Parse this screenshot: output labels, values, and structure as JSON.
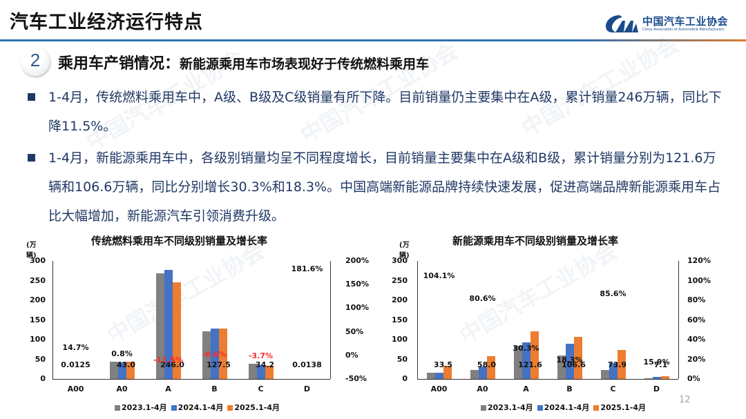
{
  "header": {
    "title": "汽车工业经济运行特点",
    "logo_cn": "中国汽车工业协会",
    "logo_en": "China Association of Automobile Manufacturers"
  },
  "section": {
    "number": "2",
    "title": "乘用车产销情况：",
    "subtitle": "新能源乘用车市场表现好于传统燃料乘用车"
  },
  "bullets": [
    "1-4月，传统燃料乘用车中，A级、B级及C级销量有所下降。目前销量仍主要集中在A级，累计销量246万辆，同比下降11.5%。",
    "1-4月，新能源乘用车中，各级别销量均呈不同程度增长，目前销量主要集中在A级和B级，累计销量分别为121.6万辆和106.6万辆，同比分别增长30.3%和18.3%。中国高端新能源品牌持续快速发展，促进高端品牌新能源乘用车占比大幅增加，新能源汽车引领消费升级。"
  ],
  "watermark": "中国汽车工业协会",
  "page_number": "12",
  "colors": {
    "s2023": "#808080",
    "s2024": "#4472c4",
    "s2025": "#ed7d31",
    "negative": "#ff2a2a",
    "accent_blue": "#2e6fb3",
    "accent_orange": "#e07b2a"
  },
  "chart_data": [
    {
      "type": "bar",
      "title": "传统燃料乘用车不同级别销量及增长率",
      "ylabel": "(万辆)",
      "ylim": [
        0,
        300
      ],
      "yticks": [
        "0",
        "50",
        "100",
        "150",
        "200",
        "250",
        "300"
      ],
      "y2lim": [
        -50,
        200
      ],
      "y2ticks": [
        "-50%",
        "0%",
        "50%",
        "100%",
        "150%",
        "200%"
      ],
      "categories": [
        "A00",
        "A0",
        "A",
        "B",
        "C",
        "D"
      ],
      "series": [
        {
          "name": "2023.1-4月",
          "values": [
            0.01,
            43.5,
            268,
            121,
            39,
            0.005
          ]
        },
        {
          "name": "2024.1-4月",
          "values": [
            0.01,
            42.7,
            278,
            128.3,
            35.5,
            0.005
          ]
        },
        {
          "name": "2025.1-4月",
          "values": [
            0.0125,
            43.0,
            246.0,
            127.5,
            34.2,
            0.0138
          ]
        }
      ],
      "value_labels": [
        "0.0125",
        "43.0",
        "246.0",
        "127.5",
        "34.2",
        "0.0138"
      ],
      "growth_rates": [
        "14.7%",
        "0.8%",
        "-11.5%",
        "-0.6%",
        "-3.7%",
        "181.6%"
      ],
      "growth_values": [
        14.7,
        0.8,
        -11.5,
        -0.6,
        -3.7,
        181.6
      ],
      "grid": false,
      "legend_position": "bottom"
    },
    {
      "type": "bar",
      "title": "新能源乘用车不同级别销量及增长率",
      "ylabel": "(万辆)",
      "ylim": [
        0,
        300
      ],
      "yticks": [
        "0",
        "50",
        "100",
        "150",
        "200",
        "250",
        "300"
      ],
      "y2lim": [
        0,
        120
      ],
      "y2ticks": [
        "0%",
        "20%",
        "40%",
        "60%",
        "80%",
        "100%",
        "120%"
      ],
      "categories": [
        "A00",
        "A0",
        "A",
        "B",
        "C",
        "D"
      ],
      "series": [
        {
          "name": "2023.1-4月",
          "values": [
            16.5,
            22,
            85,
            60,
            23,
            1.5
          ]
        },
        {
          "name": "2024.1-4月",
          "values": [
            16.4,
            32.1,
            93.3,
            90.1,
            39.8,
            6.1
          ]
        },
        {
          "name": "2025.1-4月",
          "values": [
            33.5,
            58.0,
            121.6,
            106.6,
            73.9,
            7.1
          ]
        }
      ],
      "value_labels": [
        "33.5",
        "58.0",
        "121.6",
        "106.6",
        "73.9",
        "7.1"
      ],
      "growth_rates": [
        "104.1%",
        "80.6%",
        "30.3%",
        "18.3%",
        "85.6%",
        "15.9%"
      ],
      "growth_values": [
        104.1,
        80.6,
        30.3,
        18.3,
        85.6,
        15.9
      ],
      "grid": false,
      "legend_position": "bottom"
    }
  ]
}
